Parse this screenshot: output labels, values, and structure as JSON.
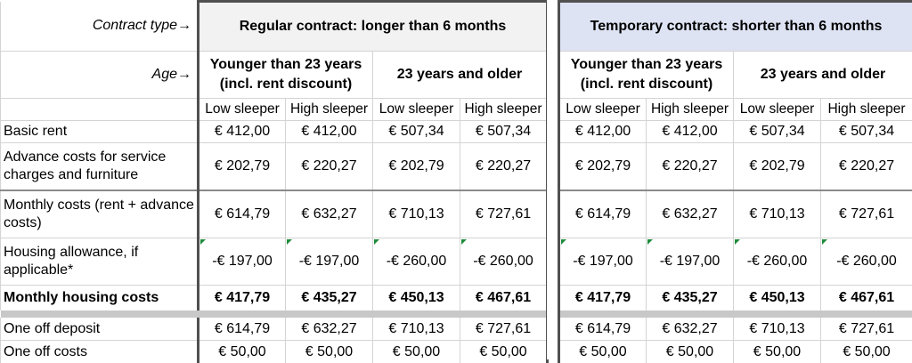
{
  "header": {
    "contract_type_label": "Contract type→",
    "age_label": "Age→",
    "regular_title": "Regular contract: longer than 6 months",
    "temporary_title": "Temporary contract: shorter than 6 months",
    "age_groups": [
      "Younger than 23 years (incl. rent discount)",
      "23 years and older"
    ],
    "sleeper_types": [
      "Low sleeper",
      "High sleeper",
      "Low sleeper",
      "High sleeper"
    ]
  },
  "rows": [
    {
      "label": "Basic rent",
      "values": [
        "€ 412,00",
        "€ 412,00",
        "€ 507,34",
        "€ 507,34"
      ]
    },
    {
      "label": "Advance costs for service charges and furniture",
      "values": [
        "€ 202,79",
        "€ 220,27",
        "€ 202,79",
        "€ 220,27"
      ]
    },
    {
      "label": "Monthly costs (rent + advance costs)",
      "values": [
        "€ 614,79",
        "€ 632,27",
        "€ 710,13",
        "€ 727,61"
      ]
    },
    {
      "label": "Housing allowance, if applicable*",
      "values": [
        "-€ 197,00",
        "-€ 197,00",
        "-€ 260,00",
        "-€ 260,00"
      ]
    },
    {
      "label": "Monthly housing costs",
      "values": [
        "€ 417,79",
        "€ 435,27",
        "€ 450,13",
        "€ 467,61"
      ]
    },
    {
      "label": "One off deposit",
      "values": [
        "€ 614,79",
        "€ 632,27",
        "€ 710,13",
        "€ 727,61"
      ]
    },
    {
      "label": "One off costs",
      "values": [
        "€ 50,00",
        "€ 50,00",
        "€ 50,00",
        "€ 50,00"
      ]
    }
  ],
  "temporary_rows": [
    [
      "€ 412,00",
      "€ 412,00",
      "€ 507,34",
      "€ 507,34"
    ],
    [
      "€ 202,79",
      "€ 220,27",
      "€ 202,79",
      "€ 220,27"
    ],
    [
      "€ 614,79",
      "€ 632,27",
      "€ 710,13",
      "€ 727,61"
    ],
    [
      "-€ 197,00",
      "-€ 197,00",
      "-€ 260,00",
      "-€ 260,00"
    ],
    [
      "€ 417,79",
      "€ 435,27",
      "€ 450,13",
      "€ 467,61"
    ],
    [
      "€ 614,79",
      "€ 632,27",
      "€ 710,13",
      "€ 727,61"
    ],
    [
      "€ 50,00",
      "€ 50,00",
      "€ 50,00",
      "€ 50,00"
    ]
  ],
  "colors": {
    "regular_header_bg": "#f2f2f2",
    "temporary_header_bg": "#dde3f3",
    "comment_marker": "#1f8b3c"
  }
}
